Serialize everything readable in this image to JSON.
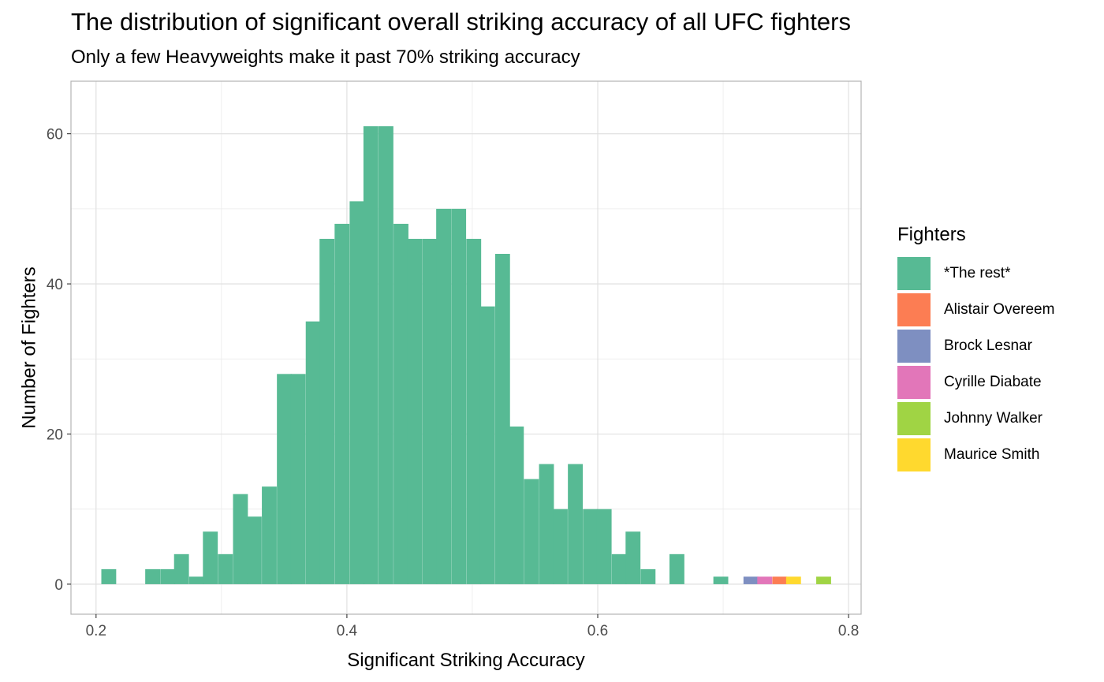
{
  "chart_data": {
    "type": "bar",
    "title": "The distribution of significant overall striking accuracy of all UFC fighters",
    "subtitle": "Only a few Heavyweights make it past 70% striking accuracy",
    "xlabel": "Significant Striking Accuracy",
    "ylabel": "Number of Fighters",
    "xlim": [
      0.18,
      0.81
    ],
    "ylim": [
      -4,
      67
    ],
    "x_ticks": [
      0.2,
      0.4,
      0.6,
      0.8
    ],
    "x_tick_labels": [
      "0.2",
      "0.4",
      "0.6",
      "0.8"
    ],
    "y_ticks": [
      0,
      20,
      40,
      60
    ],
    "y_tick_labels": [
      "0",
      "20",
      "40",
      "60"
    ],
    "grid": true,
    "legend_title": "Fighters",
    "legend_position": "right",
    "bin_width": 0.0116,
    "series": [
      {
        "name": "*The rest*",
        "color": "#57BA94",
        "bins": [
          {
            "x": 0.21,
            "y": 2
          },
          {
            "x": 0.245,
            "y": 2
          },
          {
            "x": 0.257,
            "y": 2
          },
          {
            "x": 0.268,
            "y": 4
          },
          {
            "x": 0.28,
            "y": 1
          },
          {
            "x": 0.291,
            "y": 7
          },
          {
            "x": 0.303,
            "y": 4
          },
          {
            "x": 0.315,
            "y": 12
          },
          {
            "x": 0.326,
            "y": 9
          },
          {
            "x": 0.338,
            "y": 13
          },
          {
            "x": 0.35,
            "y": 28
          },
          {
            "x": 0.361,
            "y": 28
          },
          {
            "x": 0.373,
            "y": 35
          },
          {
            "x": 0.384,
            "y": 46
          },
          {
            "x": 0.396,
            "y": 48
          },
          {
            "x": 0.408,
            "y": 51
          },
          {
            "x": 0.419,
            "y": 61
          },
          {
            "x": 0.431,
            "y": 61
          },
          {
            "x": 0.443,
            "y": 48
          },
          {
            "x": 0.454,
            "y": 46
          },
          {
            "x": 0.466,
            "y": 46
          },
          {
            "x": 0.477,
            "y": 50
          },
          {
            "x": 0.489,
            "y": 50
          },
          {
            "x": 0.501,
            "y": 46
          },
          {
            "x": 0.512,
            "y": 37
          },
          {
            "x": 0.524,
            "y": 44
          },
          {
            "x": 0.535,
            "y": 21
          },
          {
            "x": 0.547,
            "y": 14
          },
          {
            "x": 0.559,
            "y": 16
          },
          {
            "x": 0.57,
            "y": 10
          },
          {
            "x": 0.582,
            "y": 16
          },
          {
            "x": 0.594,
            "y": 10
          },
          {
            "x": 0.605,
            "y": 10
          },
          {
            "x": 0.617,
            "y": 4
          },
          {
            "x": 0.628,
            "y": 7
          },
          {
            "x": 0.64,
            "y": 2
          },
          {
            "x": 0.663,
            "y": 4
          },
          {
            "x": 0.698,
            "y": 1
          }
        ]
      },
      {
        "name": "Alistair Overeem",
        "color": "#FC7D53",
        "bins": [
          {
            "x": 0.745,
            "y": 1
          }
        ]
      },
      {
        "name": "Brock Lesnar",
        "color": "#7E8FC1",
        "bins": [
          {
            "x": 0.722,
            "y": 1
          }
        ]
      },
      {
        "name": "Cyrille Diabate",
        "color": "#E276B9",
        "bins": [
          {
            "x": 0.733,
            "y": 1
          }
        ]
      },
      {
        "name": "Johnny Walker",
        "color": "#A0D444",
        "bins": [
          {
            "x": 0.78,
            "y": 1
          }
        ]
      },
      {
        "name": "Maurice Smith",
        "color": "#FFD92E",
        "bins": [
          {
            "x": 0.756,
            "y": 1
          }
        ]
      }
    ]
  }
}
